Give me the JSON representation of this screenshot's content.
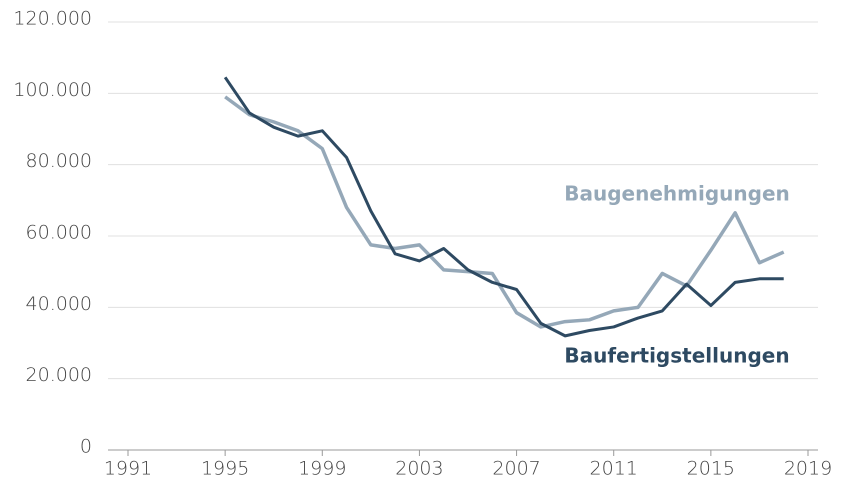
{
  "chart_data": {
    "type": "line",
    "x": [
      1995,
      1996,
      1997,
      1998,
      1999,
      2000,
      2001,
      2002,
      2003,
      2004,
      2005,
      2006,
      2007,
      2008,
      2009,
      2010,
      2011,
      2012,
      2013,
      2014,
      2015,
      2016,
      2017,
      2018
    ],
    "series": [
      {
        "name": "Baugenehmigungen",
        "color": "#95a8b8",
        "values": [
          99000,
          94000,
          92000,
          89500,
          84500,
          68000,
          57500,
          56500,
          57500,
          50500,
          50000,
          49500,
          38500,
          34500,
          36000,
          36500,
          39000,
          40000,
          49500,
          46000,
          56000,
          66500,
          52500,
          55500
        ]
      },
      {
        "name": "Baufertigstellungen",
        "color": "#2e4a62",
        "values": [
          104500,
          94500,
          90500,
          88000,
          89500,
          82000,
          67000,
          55000,
          53000,
          56500,
          50500,
          47000,
          45000,
          35500,
          32000,
          33500,
          34500,
          37000,
          39000,
          46500,
          40500,
          47000,
          48000,
          48000
        ]
      }
    ],
    "xlim": [
      1991,
      2019
    ],
    "xticks": [
      1991,
      1995,
      1999,
      2003,
      2007,
      2011,
      2015,
      2019
    ],
    "ylim": [
      0,
      120000
    ],
    "yticks": [
      0,
      {
        "value": 20000,
        "label": "20.000"
      },
      {
        "value": 40000,
        "label": "40.000"
      },
      {
        "value": 60000,
        "label": "60.000"
      },
      {
        "value": 80000,
        "label": "80.000"
      },
      {
        "value": 100000,
        "label": "100.000"
      },
      {
        "value": 120000,
        "label": "120.000"
      }
    ],
    "grid": true
  }
}
